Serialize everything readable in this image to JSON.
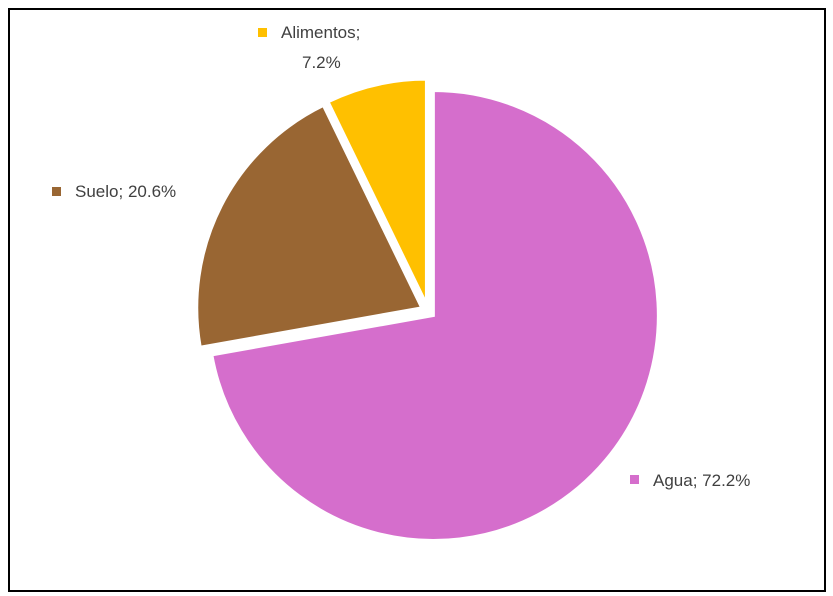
{
  "chart_data": {
    "type": "pie",
    "title": "",
    "slices": [
      {
        "label": "Agua",
        "value": 72.2,
        "display": "72.2%",
        "color": "#D56ECC"
      },
      {
        "label": "Suelo",
        "value": 20.6,
        "display": "20.6%",
        "color": "#996633"
      },
      {
        "label": "Alimentos",
        "value": 7.2,
        "display": "7.2%",
        "color": "#FFC000"
      }
    ],
    "exploded": true,
    "data_labels": "category; percent with legend key"
  }
}
